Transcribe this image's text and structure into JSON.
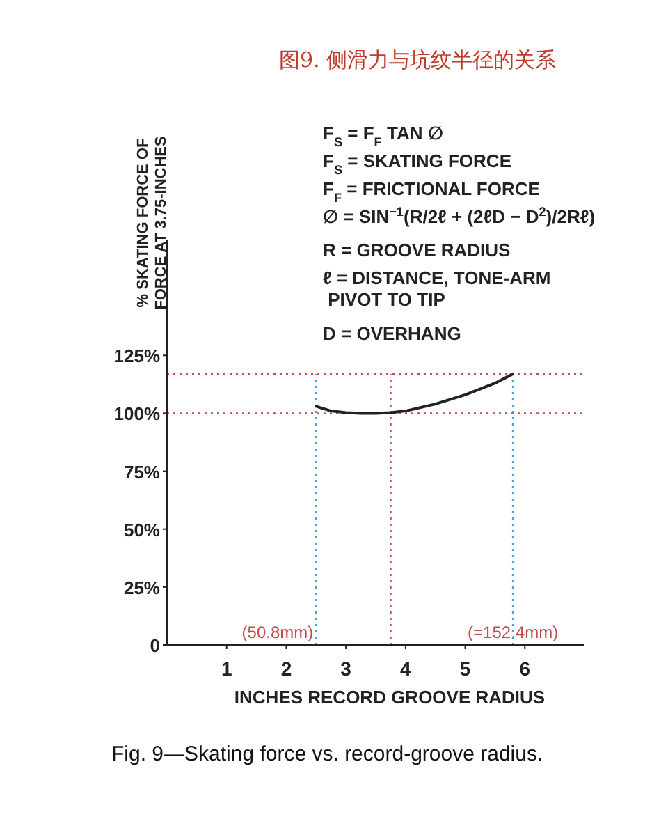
{
  "chart_data": {
    "type": "line",
    "title": "图9. 侧滑力与坑纹半径的关系",
    "xlabel": "INCHES   RECORD GROOVE RADIUS",
    "ylabel": "% SKATING FORCE OF\nFORCE AT 3.75-INCHES",
    "x": [
      2.5,
      2.75,
      3,
      3.25,
      3.5,
      3.75,
      4,
      4.5,
      5,
      5.5,
      5.8
    ],
    "series": [
      {
        "color": "#222222",
        "values": [
          103,
          101,
          100.3,
          100,
          100,
          100.3,
          101,
          104,
          108,
          113,
          117
        ]
      }
    ],
    "xlim": [
      0,
      7
    ],
    "xticks": [
      1,
      2,
      3,
      4,
      5,
      6
    ],
    "ylim": [
      0,
      175
    ],
    "yticks": [
      {
        "value": 0,
        "label": "0"
      },
      {
        "value": 25,
        "label": "25%"
      },
      {
        "value": 50,
        "label": "50%"
      },
      {
        "value": 75,
        "label": "75%"
      },
      {
        "value": 100,
        "label": "100%"
      },
      {
        "value": 125,
        "label": "125%"
      }
    ],
    "ref_lines": [
      {
        "axis": "y",
        "value": 117,
        "color": "#c0504d",
        "line_style": "dotted"
      },
      {
        "axis": "y",
        "value": 100,
        "color": "#c0504d",
        "line_style": "dotted"
      },
      {
        "axis": "x",
        "value": 2.5,
        "color": "#4aa3d8",
        "line_style": "dotted"
      },
      {
        "axis": "x",
        "value": 3.75,
        "color": "#c0504d",
        "line_style": "dotted"
      },
      {
        "axis": "x",
        "value": 5.8,
        "color": "#4aa3d8",
        "line_style": "dotted"
      }
    ],
    "annotations": [
      "F$_{S}$ = F$_{F}$ TAN ∅",
      "F$_{S}$ = SKATING FORCE",
      "F$_{F}$ = FRICTIONAL FORCE",
      "∅ = SIN$^{−1}$(R/2ℓ + (2ℓD − D$^{2}$)/2Rℓ)",
      "R = GROOVE RADIUS",
      "ℓ = DISTANCE, TONE-ARM\n     PIVOT TO TIP",
      "D = OVERHANG",
      {
        "text": "(50.8mm)",
        "x": 2.5,
        "y": 0
      },
      {
        "text": "(=152.4mm)",
        "x": 5.8,
        "y": 0
      },
      "Fig. 9—Skating force vs. record-groove radius."
    ],
    "grid": false,
    "marker": "none",
    "line_style": "solid"
  }
}
